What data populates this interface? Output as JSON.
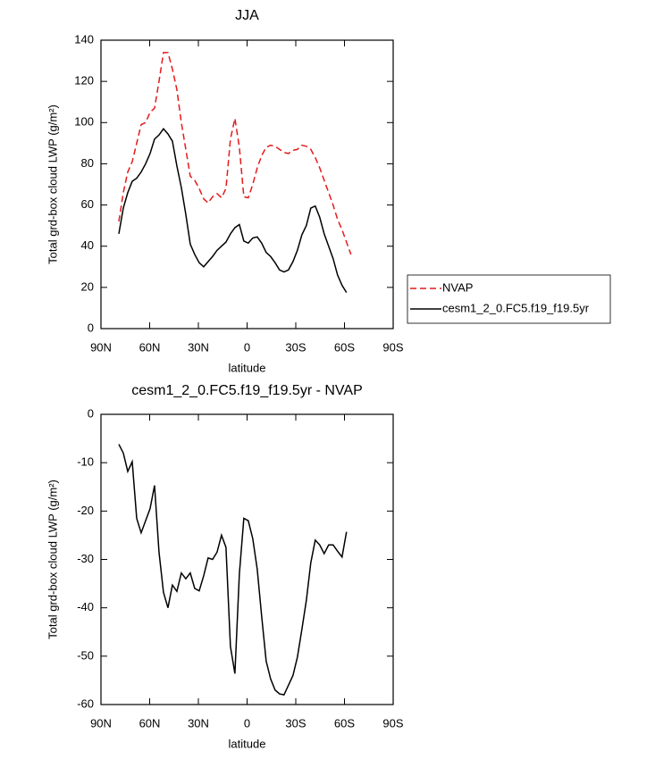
{
  "chart_data": [
    {
      "type": "line",
      "title": "JJA",
      "x_label": "latitude",
      "y_label": "Total grd-box cloud LWP (g/m²)",
      "x": [
        79,
        76.25,
        73.5,
        70.75,
        68,
        65.25,
        62.5,
        59.75,
        57,
        54.25,
        51.5,
        48.75,
        46,
        43.25,
        40.5,
        37.75,
        35,
        32.25,
        29.5,
        26.75,
        24,
        21.25,
        18.5,
        15.75,
        13,
        10.25,
        7.5,
        4.75,
        2,
        -0.75,
        -3.5,
        -6.25,
        -9,
        -11.75,
        -14.5,
        -17.25,
        -20,
        -22.75,
        -25.5,
        -28.25,
        -31,
        -33.75,
        -36.5,
        -39.25,
        -42,
        -44.75,
        -47.5,
        -50.25,
        -53,
        -55.75,
        -58.5,
        -61.25,
        -64
      ],
      "series": [
        {
          "name": "NVAP",
          "color": "#e41a1c",
          "dashed": true,
          "values": [
            52,
            66,
            76,
            81,
            90,
            99,
            100,
            105,
            107,
            120,
            134,
            134,
            126,
            116,
            100,
            87,
            74,
            72,
            68,
            63,
            61,
            64,
            65.5,
            63.5,
            68,
            92,
            102,
            88,
            64,
            63.5,
            70,
            78,
            84,
            88,
            89,
            88.5,
            87,
            85.5,
            85,
            86.5,
            87,
            89,
            88.5,
            87,
            83,
            78,
            72,
            66,
            60,
            53,
            48,
            42,
            36
          ]
        },
        {
          "name": "cesm1_2_0.FC5.f19_f19.5yr",
          "color": "#000000",
          "dashed": false,
          "values": [
            46,
            58.5,
            66,
            71.5,
            73,
            76,
            80,
            85,
            92,
            94,
            97,
            94.5,
            91,
            79,
            68.5,
            55.5,
            41,
            36,
            32,
            30,
            32.5,
            35,
            38,
            40,
            42,
            46,
            49,
            50.5,
            42.5,
            41.5,
            44,
            44.5,
            41.5,
            37,
            35,
            32,
            28.5,
            27.5,
            28.5,
            32.5,
            38,
            45.5,
            50,
            58.5,
            59.5,
            54,
            46,
            40,
            34,
            26,
            21,
            17.5,
            null
          ]
        }
      ],
      "xlim": [
        90,
        -90
      ],
      "xticks": [
        {
          "value": 90,
          "label": "90N"
        },
        {
          "value": 60,
          "label": "60N"
        },
        {
          "value": 30,
          "label": "30N"
        },
        0,
        {
          "value": -30,
          "label": "30S"
        },
        {
          "value": -60,
          "label": "60S"
        },
        {
          "value": -90,
          "label": "90S"
        }
      ],
      "ylim": [
        0,
        140
      ],
      "yticks": [
        0,
        20,
        40,
        60,
        80,
        100,
        120,
        140
      ],
      "legend": "right"
    },
    {
      "type": "line",
      "title": "cesm1_2_0.FC5.f19_f19.5yr - NVAP",
      "x_label": "latitude",
      "y_label": "Total grd-box cloud LWP (g/m²)",
      "x": [
        79,
        76.25,
        73.5,
        70.75,
        68,
        65.25,
        62.5,
        59.75,
        57,
        54.25,
        51.5,
        48.75,
        46,
        43.25,
        40.5,
        37.75,
        35,
        32.25,
        29.5,
        26.75,
        24,
        21.25,
        18.5,
        15.75,
        13,
        10.25,
        7.5,
        4.75,
        2,
        -0.75,
        -3.5,
        -6.25,
        -9,
        -11.75,
        -14.5,
        -17.25,
        -20,
        -22.75,
        -25.5,
        -28.25,
        -31,
        -33.75,
        -36.5,
        -39.25,
        -42,
        -44.75,
        -47.5,
        -50.25,
        -53,
        -55.75,
        -58.5,
        -61.25,
        -64
      ],
      "color": "#000000",
      "values": [
        -6.2,
        -8,
        -11.8,
        -9.8,
        -21.5,
        -24.5,
        -22,
        -19.5,
        -14.7,
        -28.5,
        -36.8,
        -40,
        -35.3,
        -36.6,
        -32.8,
        -34,
        -32.8,
        -36,
        -36.5,
        -33.4,
        -29.7,
        -30,
        -28.5,
        -25,
        -27.5,
        -48,
        -53.6,
        -33,
        -21.5,
        -22,
        -25.7,
        -32,
        -41.8,
        -51,
        -54.7,
        -57,
        -57.8,
        -58,
        -56,
        -54,
        -50.2,
        -44.5,
        -38.5,
        -30.7,
        -26,
        -27,
        -28.8,
        -27,
        -27,
        -28.3,
        -29.5,
        -24.3,
        null
      ],
      "xlim": [
        90,
        -90
      ],
      "xticks": [
        {
          "value": 90,
          "label": "90N"
        },
        {
          "value": 60,
          "label": "60N"
        },
        {
          "value": 30,
          "label": "30N"
        },
        0,
        {
          "value": -30,
          "label": "30S"
        },
        {
          "value": -60,
          "label": "60S"
        },
        {
          "value": -90,
          "label": "90S"
        }
      ],
      "ylim": [
        -60,
        0
      ],
      "yticks": [
        -60,
        -50,
        -40,
        -30,
        -20,
        -10,
        0
      ]
    }
  ]
}
